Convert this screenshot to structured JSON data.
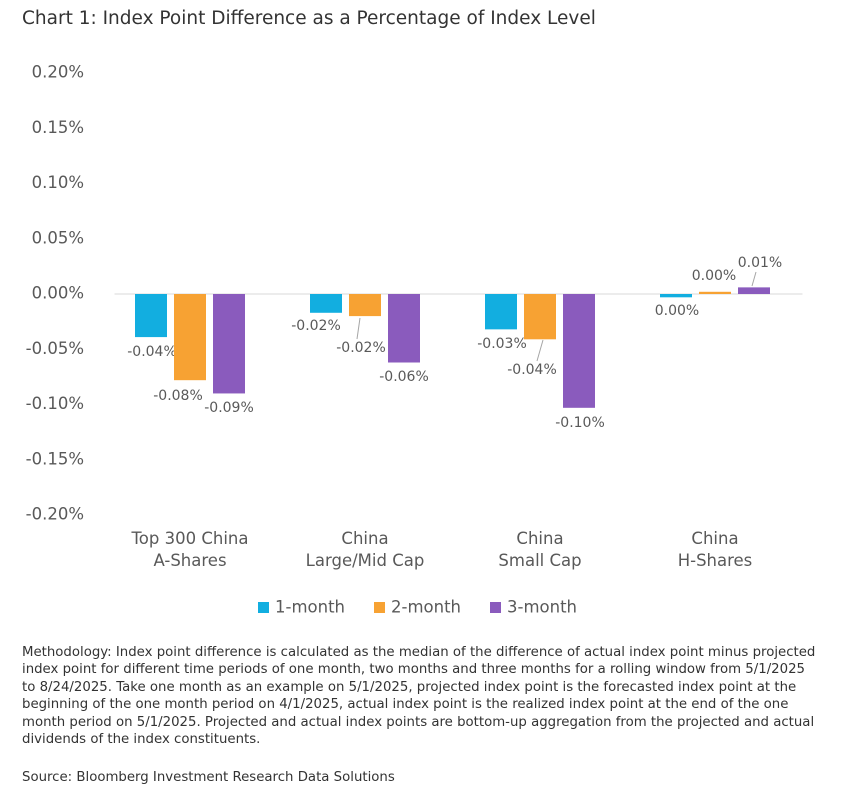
{
  "chart_data": {
    "type": "bar",
    "title": "Chart 1: Index Point Difference as a Percentage of Index Level",
    "categories": [
      "Top 300 China\nA-Shares",
      "China\nLarge/Mid Cap",
      "China\nSmall Cap",
      "China\nH-Shares"
    ],
    "series": [
      {
        "name": "1-month",
        "color": "#12aee0",
        "values": [
          -0.039,
          -0.017,
          -0.032,
          -0.003
        ],
        "value_labels": [
          "-0.04%",
          "-0.02%",
          "-0.03%",
          "0.00%"
        ]
      },
      {
        "name": "2-month",
        "color": "#f7a233",
        "values": [
          -0.078,
          -0.02,
          -0.041,
          0.002
        ],
        "value_labels": [
          "-0.08%",
          "-0.02%",
          "-0.04%",
          "0.00%"
        ]
      },
      {
        "name": "3-month",
        "color": "#8a5bbd",
        "values": [
          -0.09,
          -0.062,
          -0.103,
          0.006
        ],
        "value_labels": [
          "-0.09%",
          "-0.06%",
          "-0.10%",
          "0.01%"
        ]
      }
    ],
    "ylim": [
      -0.2,
      0.2
    ],
    "yticks": [
      {
        "value": -0.2,
        "label": "-0.20%"
      },
      {
        "value": -0.15,
        "label": "-0.15%"
      },
      {
        "value": -0.1,
        "label": "-0.10%"
      },
      {
        "value": -0.05,
        "label": "-0.05%"
      },
      {
        "value": 0,
        "label": "0.00%"
      },
      {
        "value": 0.05,
        "label": "0.05%"
      },
      {
        "value": 0.1,
        "label": "0.10%"
      },
      {
        "value": 0.15,
        "label": "0.15%"
      },
      {
        "value": 0.2,
        "label": "0.20%"
      }
    ],
    "grid": false,
    "legend": "bottom",
    "note": "Methodology: Index point difference is calculated as the median of the difference of actual index point minus projected index point for different time periods of one month, two months and three months for a rolling window from 5/1/2025 to 8/24/2025. Take one month as an example on 5/1/2025, projected index point is the forecasted index point at the beginning of the one month period on 4/1/2025, actual index point is the realized index point at the end of the one month period on 5/1/2025. Projected and actual index points are bottom-up aggregation from the projected and actual dividends of the index constituents.",
    "source": "Source: Bloomberg Investment Research Data Solutions"
  }
}
